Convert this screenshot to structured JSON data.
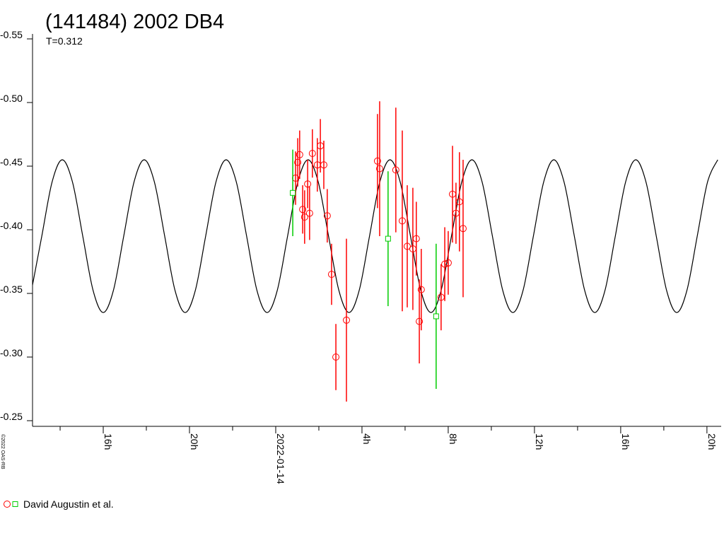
{
  "chart_data": {
    "type": "lightcurve",
    "title": "(141484) 2002 DB4",
    "subtitle": "T=0.312",
    "copyright": "©2022 OAS-RB",
    "xlim": [
      12.72,
      44.66
    ],
    "xticks": [
      {
        "value": 16,
        "label": "16h"
      },
      {
        "value": 20,
        "label": "20h"
      },
      {
        "value": 24,
        "label": "2022-01-14"
      },
      {
        "value": 28,
        "label": "4h"
      },
      {
        "value": 32,
        "label": "8h"
      },
      {
        "value": 36,
        "label": "12h"
      },
      {
        "value": 40,
        "label": "16h"
      },
      {
        "value": 44,
        "label": "20h"
      }
    ],
    "xminorticks": [
      14,
      18,
      22,
      26,
      30,
      34,
      38,
      42
    ],
    "ylim": [
      -0.55,
      -0.25
    ],
    "y_inverted": true,
    "yticks": [
      -0.55,
      {
        "value": -0.5,
        "label": "-0.50"
      },
      -0.45,
      {
        "value": -0.4,
        "label": "-0.40"
      },
      -0.35,
      {
        "value": -0.3,
        "label": "-0.30"
      },
      -0.25
    ],
    "curve": {
      "color": "#000000",
      "x": [
        12.675,
        13.15,
        13.625,
        14.1,
        14.575,
        15.05,
        15.525,
        16,
        16.475,
        16.95,
        17.425,
        17.9,
        18.375,
        18.85,
        19.325,
        19.8,
        20.275,
        20.75,
        21.225,
        21.7,
        22.175,
        22.65,
        23.125,
        23.6,
        24.075,
        24.55,
        25.025,
        25.5,
        25.975,
        26.45,
        26.925,
        27.4,
        27.875,
        28.35,
        28.825,
        29.3,
        29.775,
        30.25,
        30.725,
        31.2,
        31.675,
        32.15,
        32.625,
        33.1,
        33.575,
        34.05,
        34.525,
        35,
        35.475,
        35.95,
        36.425,
        36.9,
        37.375,
        37.85,
        38.325,
        38.8,
        39.275,
        39.75,
        40.225,
        40.7,
        41.175,
        41.65,
        42.125,
        42.6,
        43.075,
        43.55,
        44.025,
        44.5
      ],
      "values": [
        -0.3526,
        -0.395,
        -0.4374,
        -0.455,
        -0.4374,
        -0.395,
        -0.3526,
        -0.335,
        -0.3526,
        -0.395,
        -0.4374,
        -0.455,
        -0.4374,
        -0.395,
        -0.3526,
        -0.335,
        -0.3526,
        -0.395,
        -0.4374,
        -0.455,
        -0.4374,
        -0.395,
        -0.3526,
        -0.335,
        -0.3526,
        -0.395,
        -0.4374,
        -0.455,
        -0.4374,
        -0.395,
        -0.3526,
        -0.335,
        -0.3526,
        -0.395,
        -0.4374,
        -0.455,
        -0.4374,
        -0.395,
        -0.3526,
        -0.335,
        -0.3526,
        -0.395,
        -0.4374,
        -0.455,
        -0.4374,
        -0.395,
        -0.3526,
        -0.335,
        -0.3526,
        -0.395,
        -0.4374,
        -0.455,
        -0.4374,
        -0.395,
        -0.3526,
        -0.335,
        -0.3526,
        -0.395,
        -0.4374,
        -0.455,
        -0.4374,
        -0.395,
        -0.3526,
        -0.335,
        -0.3526,
        -0.395,
        -0.4374,
        -0.455
      ]
    },
    "series": [
      {
        "name": "David Augustin et al.",
        "color": "#ff0000",
        "marker": "circle",
        "x": [
          24.92,
          25.02,
          25.11,
          25.25,
          25.34,
          25.48,
          25.57,
          25.7,
          25.93,
          26.07,
          26.23,
          26.39,
          26.59,
          26.79,
          27.28,
          28.72,
          28.82,
          29.57,
          29.87,
          30.1,
          30.36,
          30.52,
          30.66,
          30.75,
          31.67,
          31.84,
          32.0,
          32.2,
          32.36,
          32.52,
          32.69
        ],
        "values": [
          -0.4406,
          -0.453,
          -0.459,
          -0.416,
          -0.41,
          -0.436,
          -0.413,
          -0.46,
          -0.451,
          -0.466,
          -0.451,
          -0.411,
          -0.365,
          -0.3,
          -0.329,
          -0.454,
          -0.448,
          -0.447,
          -0.407,
          -0.387,
          -0.385,
          -0.393,
          -0.328,
          -0.353,
          -0.347,
          -0.373,
          -0.374,
          -0.428,
          -0.413,
          -0.422,
          -0.401
        ],
        "errors": [
          0.021,
          0.019,
          0.019,
          0.019,
          0.021,
          0.019,
          0.021,
          0.019,
          0.021,
          0.021,
          0.019,
          0.021,
          0.024,
          0.026,
          0.064,
          0.037,
          0.053,
          0.049,
          0.071,
          0.048,
          0.048,
          0.029,
          0.033,
          0.032,
          0.026,
          0.029,
          0.025,
          0.038,
          0.024,
          0.039,
          0.054
        ]
      },
      {
        "color": "#00cc00",
        "marker": "square",
        "x": [
          24.79,
          29.21,
          31.44
        ],
        "values": [
          -0.429,
          -0.393,
          -0.332
        ],
        "errors": [
          0.034,
          0.053,
          0.057
        ]
      }
    ]
  }
}
